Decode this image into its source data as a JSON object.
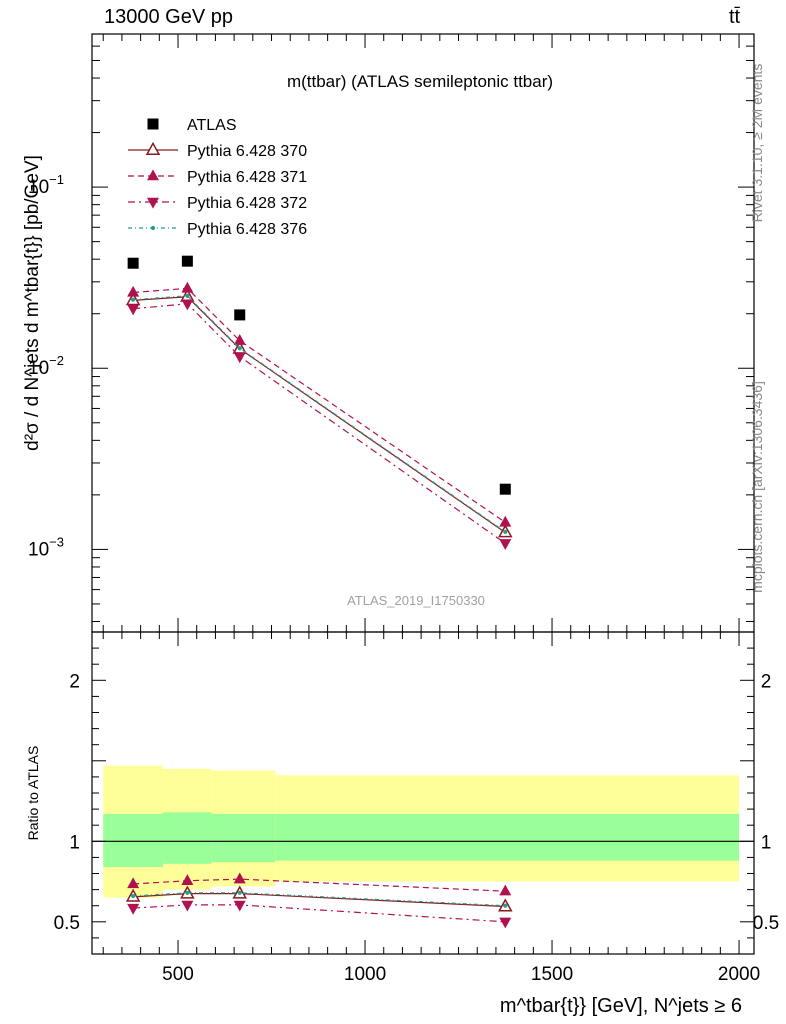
{
  "header": {
    "left_title": "13000 GeV pp",
    "right_title": "tt̄"
  },
  "side_labels": {
    "rivet": "Rivet 3.1.10, ≥ 2M events",
    "mcplots": "mcplots.cern.ch [arXiv:1306.3436]"
  },
  "colors": {
    "data": "#000000",
    "pythia_370": "#8b1a1a",
    "pythia_371": "#b0124f",
    "pythia_372": "#b0124f",
    "pythia_376": "#20a090",
    "band_inner": "#99ff99",
    "band_outer": "#ffff99"
  },
  "chart_data": [
    {
      "type": "scatter",
      "title": "m(ttbar) (ATLAS semileptonic ttbar)",
      "analysis_label": "ATLAS_2019_I1750330",
      "ylabel": "d²σ / d N^jets d m^tbar{t}} [pb/GeV]",
      "xlabel": "m^tbar{t}} [GeV], N^jets ≥ 6",
      "yscale": "log",
      "xlim": [
        270,
        2040
      ],
      "ylim": [
        0.00035,
        0.7
      ],
      "y_ticks": [
        {
          "value": 0.1,
          "base": "10",
          "exp": "−1"
        },
        {
          "value": 0.01,
          "base": "10",
          "exp": "−2"
        },
        {
          "value": 0.001,
          "base": "10",
          "exp": "−3"
        }
      ],
      "legend_position": "top-left",
      "x": [
        380,
        525,
        665,
        1375
      ],
      "series": [
        {
          "name": "ATLAS",
          "key": "data",
          "marker": "square",
          "values": [
            0.038,
            0.039,
            0.0197,
            0.00215
          ]
        },
        {
          "name": "Pythia 6.428 370",
          "key": "p370",
          "marker": "triangle-up-open",
          "line": "solid",
          "values": [
            0.0237,
            0.0248,
            0.0128,
            0.00124
          ]
        },
        {
          "name": "Pythia 6.428 371",
          "key": "p371",
          "marker": "triangle-up",
          "line": "dashed",
          "values": [
            0.0262,
            0.0276,
            0.0142,
            0.00141
          ]
        },
        {
          "name": "Pythia 6.428 372",
          "key": "p372",
          "marker": "triangle-down",
          "line": "dashdot",
          "values": [
            0.0213,
            0.0227,
            0.0116,
            0.00108
          ]
        },
        {
          "name": "Pythia 6.428 376",
          "key": "p376",
          "marker": "dot",
          "line": "dashdot-fine",
          "values": [
            0.0239,
            0.0251,
            0.0129,
            0.00125
          ]
        }
      ]
    },
    {
      "type": "line",
      "ylabel": "Ratio to ATLAS",
      "yscale": "linear",
      "xlim": [
        270,
        2040
      ],
      "ylim": [
        0.3,
        2.3
      ],
      "x_ticks": [
        "500",
        "1000",
        "1500",
        "2000"
      ],
      "y_ticks": [
        "0.5",
        "1",
        "2"
      ],
      "x": [
        380,
        525,
        665,
        1375
      ],
      "bins": [
        [
          300,
          460
        ],
        [
          460,
          590
        ],
        [
          590,
          760
        ],
        [
          760,
          2000
        ]
      ],
      "bands": {
        "inner": [
          [
            0.84,
            1.17
          ],
          [
            0.86,
            1.18
          ],
          [
            0.87,
            1.17
          ],
          [
            0.88,
            1.17
          ]
        ],
        "outer": [
          [
            0.65,
            1.47
          ],
          [
            0.7,
            1.45
          ],
          [
            0.72,
            1.44
          ],
          [
            0.75,
            1.41
          ]
        ]
      },
      "series": [
        {
          "name": "Pythia 6.428 370",
          "key": "p370",
          "values": [
            0.655,
            0.675,
            0.675,
            0.595
          ]
        },
        {
          "name": "Pythia 6.428 371",
          "key": "p371",
          "values": [
            0.735,
            0.755,
            0.765,
            0.69
          ]
        },
        {
          "name": "Pythia 6.428 372",
          "key": "p372",
          "values": [
            0.585,
            0.605,
            0.605,
            0.5
          ]
        },
        {
          "name": "Pythia 6.428 376",
          "key": "p376",
          "values": [
            0.66,
            0.68,
            0.68,
            0.6
          ]
        }
      ]
    }
  ]
}
